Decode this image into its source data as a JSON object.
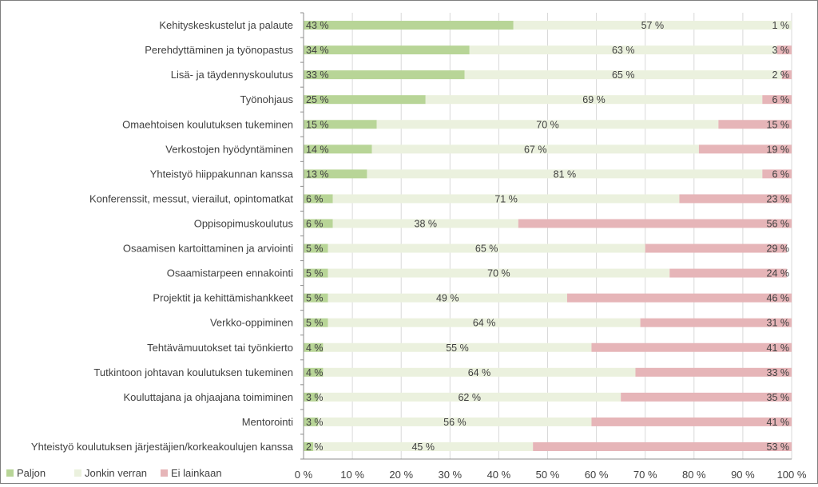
{
  "chart_data": {
    "type": "bar",
    "orientation": "horizontal",
    "stacked": true,
    "title": "",
    "xlabel": "",
    "ylabel": "",
    "xlim": [
      0,
      100
    ],
    "x_ticks": [
      "0 %",
      "10 %",
      "20 %",
      "30 %",
      "40 %",
      "50 %",
      "60 %",
      "70 %",
      "80 %",
      "90 %",
      "100 %"
    ],
    "x_tick_values": [
      0,
      10,
      20,
      30,
      40,
      50,
      60,
      70,
      80,
      90,
      100
    ],
    "grid": true,
    "legend_position": "bottom-left",
    "categories": [
      "Kehityskeskustelut ja palaute",
      "Perehdyttäminen ja työnopastus",
      "Lisä- ja täydennyskoulutus",
      "Työnohjaus",
      "Omaehtoisen koulutuksen tukeminen",
      "Verkostojen hyödyntäminen",
      "Yhteistyö hiippakunnan kanssa",
      "Konferenssit, messut, vierailut, opintomatkat",
      "Oppisopimuskoulutus",
      "Osaamisen kartoittaminen ja arviointi",
      "Osaamistarpeen ennakointi",
      "Projektit ja kehittämishankkeet",
      "Verkko-oppiminen",
      "Tehtävämuutokset tai työnkierto",
      "Tutkintoon johtavan koulutuksen tukeminen",
      "Kouluttajana ja ohjaajana toimiminen",
      "Mentorointi",
      "Yhteistyö koulutuksen järjestäjien/korkeakoulujen kanssa"
    ],
    "series": [
      {
        "name": "Paljon",
        "color": "#b8d597",
        "values": [
          43,
          34,
          33,
          25,
          15,
          14,
          13,
          6,
          6,
          5,
          5,
          5,
          5,
          4,
          4,
          3,
          3,
          2
        ],
        "labels": [
          "43 %",
          "34 %",
          "33 %",
          "25 %",
          "15 %",
          "14 %",
          "13 %",
          "6 %",
          "6 %",
          "5 %",
          "5 %",
          "5 %",
          "5 %",
          "4 %",
          "4 %",
          "3 %",
          "3 %",
          "2 %"
        ]
      },
      {
        "name": "Jonkin verran",
        "color": "#ebf1de",
        "values": [
          57,
          63,
          65,
          69,
          70,
          67,
          81,
          71,
          38,
          65,
          70,
          49,
          64,
          55,
          64,
          62,
          56,
          45
        ],
        "labels": [
          "57 %",
          "63 %",
          "65 %",
          "69 %",
          "70 %",
          "67 %",
          "81 %",
          "71 %",
          "38 %",
          "65 %",
          "70 %",
          "49 %",
          "64 %",
          "55 %",
          "64 %",
          "62 %",
          "56 %",
          "45 %"
        ]
      },
      {
        "name": "Ei lainkaan",
        "color": "#e6b5b8",
        "values": [
          1,
          3,
          2,
          6,
          15,
          19,
          6,
          23,
          56,
          29,
          24,
          46,
          31,
          41,
          33,
          35,
          41,
          53
        ],
        "labels": [
          "1 %",
          "3 %",
          "2 %",
          "6 %",
          "15 %",
          "19 %",
          "6 %",
          "23 %",
          "56 %",
          "29 %",
          "24 %",
          "46 %",
          "31 %",
          "41 %",
          "33 %",
          "35 %",
          "41 %",
          "53 %"
        ]
      }
    ]
  },
  "colors": {
    "grid": "#d9d9d9",
    "axis": "#8c8c8c",
    "text": "#404040",
    "frame": "#7f7f7f"
  }
}
